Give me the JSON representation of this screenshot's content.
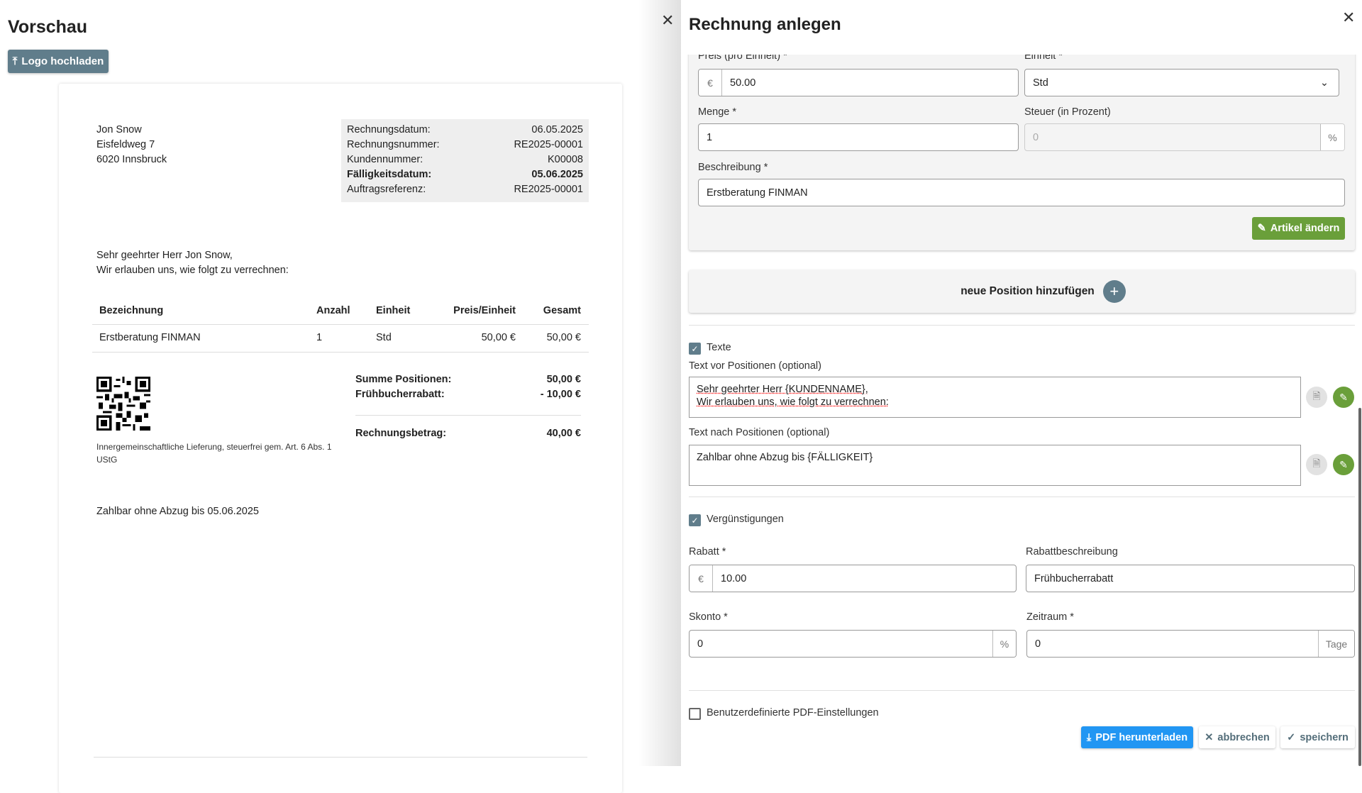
{
  "preview": {
    "title": "Vorschau",
    "logo_button": "Logo hochladen",
    "address": [
      "Jon Snow",
      "Eisfeldweg 7",
      "6020 Innsbruck"
    ],
    "info": [
      {
        "label": "Rechnungsdatum:",
        "value": "06.05.2025",
        "bold": false
      },
      {
        "label": "Rechnungsnummer:",
        "value": "RE2025-00001",
        "bold": false
      },
      {
        "label": "Kundennummer:",
        "value": "K00008",
        "bold": false
      },
      {
        "label": "Fälligkeitsdatum:",
        "value": "05.06.2025",
        "bold": true
      },
      {
        "label": "Auftragsreferenz:",
        "value": "RE2025-00001",
        "bold": false
      }
    ],
    "salutation": [
      "Sehr geehrter Herr Jon Snow,",
      "Wir erlauben uns, wie folgt zu verrechnen:"
    ],
    "table": {
      "headers": [
        "Bezeichnung",
        "Anzahl",
        "Einheit",
        "Preis/Einheit",
        "Gesamt"
      ],
      "rows": [
        [
          "Erstberatung FINMAN",
          "1",
          "Std",
          "50,00 €",
          "50,00 €"
        ]
      ]
    },
    "totals": {
      "sum_label": "Summe Positionen:",
      "sum_value": "50,00 €",
      "discount_label": "Frühbucherrabatt:",
      "discount_value": "- 10,00 €",
      "total_label": "Rechnungsbetrag:",
      "total_value": "40,00 €"
    },
    "tax_note": "Innergemeinschaftliche Lieferung, steuerfrei gem. Art. 6 Abs. 1 UStG",
    "footer_text": "Zahlbar ohne Abzug bis 05.06.2025"
  },
  "panel": {
    "title": "Rechnung anlegen",
    "item": {
      "price_label": "Preis (pro Einheit) *",
      "price_currency": "€",
      "price_value": "50.00",
      "unit_label": "Einheit *",
      "unit_value": "Std",
      "qty_label": "Menge *",
      "qty_value": "1",
      "tax_label": "Steuer (in Prozent)",
      "tax_placeholder": "0",
      "tax_suffix": "%",
      "desc_label": "Beschreibung *",
      "desc_value": "Erstberatung FINMAN",
      "change_button": "Artikel ändern"
    },
    "add_position": "neue Position hinzufügen",
    "texts": {
      "checkbox": "Texte",
      "checked": true,
      "before_label": "Text vor Positionen (optional)",
      "before_lines": [
        "Sehr geehrter Herr {KUNDENNAME},",
        "Wir erlauben uns, wie folgt zu verrechnen:"
      ],
      "after_label": "Text nach Positionen (optional)",
      "after_value": "Zahlbar ohne Abzug bis {FÄLLIGKEIT}"
    },
    "discounts": {
      "checkbox": "Vergünstigungen",
      "checked": true,
      "rabatt_label": "Rabatt *",
      "rabatt_currency": "€",
      "rabatt_value": "10.00",
      "rabatt_desc_label": "Rabattbeschreibung",
      "rabatt_desc_value": "Frühbucherrabatt",
      "skonto_label": "Skonto *",
      "skonto_value": "0",
      "skonto_suffix": "%",
      "period_label": "Zeitraum *",
      "period_value": "0",
      "period_suffix": "Tage"
    },
    "custom_pdf": {
      "checkbox": "Benutzerdefinierte PDF-Einstellungen",
      "checked": false
    },
    "buttons": {
      "download": "PDF herunterladen",
      "cancel": "abbrechen",
      "save": "speichern"
    }
  },
  "colors": {
    "primary": "#607d8b",
    "success": "#6a9f3a",
    "download": "#2196f3"
  }
}
